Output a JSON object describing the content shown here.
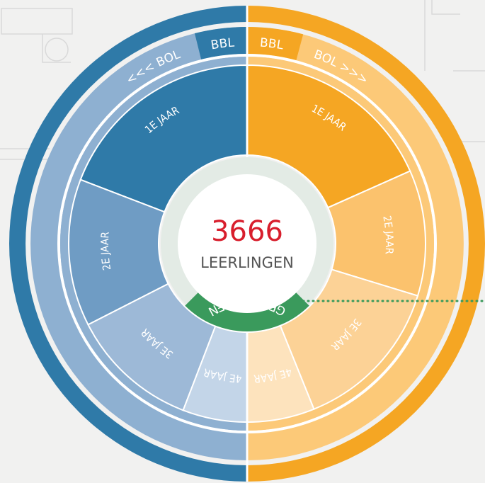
{
  "center": {
    "number": "3666",
    "label": "LEERLINGEN",
    "badge": "GESLAAGDEN"
  },
  "left": {
    "band_main": "<<< BOL",
    "band_small": "BBL",
    "segments": [
      "1E JAAR",
      "2E JAAR",
      "3E JAAR",
      "4E JAAR"
    ]
  },
  "right": {
    "band_small": "BBL",
    "band_main": "BOL >>>",
    "segments": [
      "1E JAAR",
      "2E JAAR",
      "3E JAAR",
      "4E JAAR"
    ]
  }
}
